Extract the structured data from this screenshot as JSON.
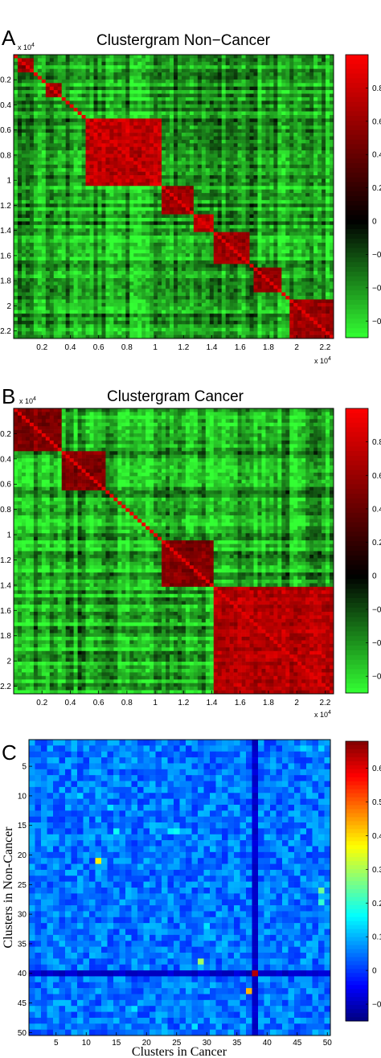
{
  "chart_data": [
    {
      "type": "heatmap",
      "panel_letter": "A",
      "title": "Clustergram Non−Cancer",
      "x_ticks": [
        "0.2",
        "0.4",
        "0.6",
        "0.8",
        "1",
        "1.2",
        "1.4",
        "1.6",
        "1.8",
        "2",
        "2.2"
      ],
      "y_ticks": [
        "0.2",
        "0.4",
        "0.6",
        "0.8",
        "1",
        "1.2",
        "1.4",
        "1.6",
        "1.8",
        "2",
        "2.2"
      ],
      "axis_exponent": "x 10",
      "axis_exponent_power": "4",
      "xlim": [
        0,
        22600
      ],
      "ylim": [
        0,
        22600
      ],
      "colorbar": {
        "ticks": [
          "0.8",
          "0.6",
          "0.4",
          "0.2",
          "0",
          "−0.2",
          "−0.4",
          "−0.6"
        ],
        "range": [
          -0.7,
          1.0
        ],
        "colors": [
          "#33ff33",
          "#000000",
          "#ff0000"
        ]
      },
      "blocks": [
        {
          "start": 200,
          "end": 1400,
          "level": 0.6
        },
        {
          "start": 2400,
          "end": 3300,
          "level": 0.7
        },
        {
          "start": 5000,
          "end": 10500,
          "level": 0.85
        },
        {
          "start": 10500,
          "end": 12800,
          "level": 0.7
        },
        {
          "start": 12800,
          "end": 14000,
          "level": 0.8
        },
        {
          "start": 14000,
          "end": 16800,
          "level": 0.7
        },
        {
          "start": 17000,
          "end": 19000,
          "level": 0.65
        },
        {
          "start": 19500,
          "end": 22600,
          "level": 0.7
        }
      ]
    },
    {
      "type": "heatmap",
      "panel_letter": "B",
      "title": "Clustergram Cancer",
      "x_ticks": [
        "0.2",
        "0.4",
        "0.6",
        "0.8",
        "1",
        "1.2",
        "1.4",
        "1.6",
        "1.8",
        "2",
        "2.2"
      ],
      "y_ticks": [
        "0.2",
        "0.4",
        "0.6",
        "0.8",
        "1",
        "1.2",
        "1.4",
        "1.6",
        "1.8",
        "2",
        "2.2"
      ],
      "axis_exponent": "x 10",
      "axis_exponent_power": "4",
      "xlim": [
        0,
        22600
      ],
      "ylim": [
        0,
        22600
      ],
      "colorbar": {
        "ticks": [
          "0.8",
          "0.6",
          "0.4",
          "0.2",
          "0",
          "−0.2",
          "−0.4",
          "−0.6"
        ],
        "range": [
          -0.7,
          1.0
        ],
        "colors": [
          "#33ff33",
          "#000000",
          "#ff0000"
        ]
      },
      "blocks": [
        {
          "start": 0,
          "end": 3500,
          "level": 0.6
        },
        {
          "start": 3500,
          "end": 6500,
          "level": 0.6
        },
        {
          "start": 10500,
          "end": 14000,
          "level": 0.6
        },
        {
          "start": 14000,
          "end": 22600,
          "level": 0.8
        }
      ]
    },
    {
      "type": "heatmap",
      "panel_letter": "C",
      "xlabel": "Clusters in Cancer",
      "ylabel": "Clusters in Non-Cancer",
      "x_ticks": [
        "5",
        "10",
        "15",
        "20",
        "25",
        "30",
        "35",
        "40",
        "45",
        "50"
      ],
      "y_ticks": [
        "5",
        "10",
        "15",
        "20",
        "25",
        "30",
        "35",
        "40",
        "45",
        "50"
      ],
      "xlim": [
        0.5,
        50.5
      ],
      "ylim": [
        0.5,
        50.5
      ],
      "colorbar": {
        "ticks": [
          "0.6",
          "0.5",
          "0.4",
          "0.3",
          "0.2",
          "0.1",
          "0",
          "−0.1"
        ],
        "range": [
          -0.15,
          0.68
        ],
        "colormap": "jet"
      },
      "highlights": [
        {
          "col": 12,
          "row": 21,
          "value": 0.38
        },
        {
          "col": 38,
          "row": 40,
          "value": 0.64
        },
        {
          "col": 37,
          "row": 43,
          "value": 0.43
        },
        {
          "col": 29,
          "row": 38,
          "value": 0.29
        },
        {
          "col": 49,
          "row": 26,
          "value": 0.25
        },
        {
          "col": 49,
          "row": 28,
          "value": 0.2
        },
        {
          "col": 15,
          "row": 16,
          "value": 0.17
        },
        {
          "col": 25,
          "row": 16,
          "value": 0.17
        },
        {
          "col": 24,
          "row": 16,
          "value": 0.15
        },
        {
          "col": 14,
          "row": 12,
          "value": 0.14
        },
        {
          "col": 9,
          "row": 10,
          "value": 0.13
        },
        {
          "col": 18,
          "row": 46,
          "value": 0.14
        },
        {
          "col": 30,
          "row": 32,
          "value": 0.14
        },
        {
          "col": 46,
          "row": 2,
          "value": 0.13
        },
        {
          "col": 28,
          "row": 49,
          "value": 0.14
        },
        {
          "col": 49,
          "row": 2,
          "value": 0.13
        }
      ],
      "dark_row": {
        "row": 40,
        "value": -0.11
      },
      "dark_col": {
        "col": 38,
        "value": -0.11
      },
      "base_value": 0.05
    }
  ]
}
